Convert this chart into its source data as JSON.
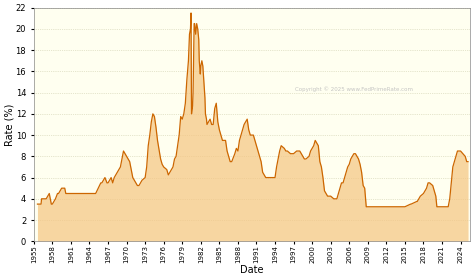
{
  "xlabel": "Date",
  "ylabel": "Rate (%)",
  "copyright": "Copyright © 2025 www.FedPrimeRate.com",
  "line_color": "#CC6600",
  "fill_color": "#F5C580",
  "bg_outer": "#ffffff",
  "bg_inner": "#FFFFF0",
  "grid_color": "#CCCCAA",
  "title_color": "#000000",
  "subtitle_color": "#0000CC",
  "ylim": [
    0,
    22
  ],
  "yticks": [
    0,
    2,
    4,
    6,
    8,
    10,
    12,
    14,
    16,
    18,
    20,
    22
  ],
  "xtick_years": [
    1955,
    1958,
    1961,
    1964,
    1967,
    1970,
    1973,
    1976,
    1979,
    1982,
    1985,
    1988,
    1991,
    1994,
    1997,
    2000,
    2003,
    2006,
    2009,
    2012,
    2015,
    2018,
    2021,
    2024
  ],
  "data": [
    [
      1955.59,
      3.5
    ],
    [
      1956.17,
      3.5
    ],
    [
      1956.25,
      4.0
    ],
    [
      1957.0,
      4.0
    ],
    [
      1957.5,
      4.5
    ],
    [
      1957.83,
      3.5
    ],
    [
      1958.0,
      3.5
    ],
    [
      1958.5,
      4.0
    ],
    [
      1958.83,
      4.5
    ],
    [
      1959.0,
      4.5
    ],
    [
      1959.5,
      5.0
    ],
    [
      1960.0,
      5.0
    ],
    [
      1960.17,
      4.5
    ],
    [
      1961.0,
      4.5
    ],
    [
      1962.0,
      4.5
    ],
    [
      1963.0,
      4.5
    ],
    [
      1964.0,
      4.5
    ],
    [
      1965.0,
      4.5
    ],
    [
      1965.83,
      5.5
    ],
    [
      1966.0,
      5.5
    ],
    [
      1966.5,
      6.0
    ],
    [
      1966.83,
      5.5
    ],
    [
      1967.0,
      5.5
    ],
    [
      1967.5,
      6.0
    ],
    [
      1967.75,
      5.5
    ],
    [
      1968.0,
      6.0
    ],
    [
      1968.5,
      6.5
    ],
    [
      1968.75,
      6.75
    ],
    [
      1969.0,
      7.0
    ],
    [
      1969.5,
      8.5
    ],
    [
      1970.0,
      8.0
    ],
    [
      1970.5,
      7.5
    ],
    [
      1970.75,
      6.75
    ],
    [
      1971.0,
      6.0
    ],
    [
      1971.5,
      5.5
    ],
    [
      1971.75,
      5.25
    ],
    [
      1972.0,
      5.25
    ],
    [
      1972.5,
      5.75
    ],
    [
      1973.0,
      6.0
    ],
    [
      1973.25,
      7.0
    ],
    [
      1973.5,
      9.0
    ],
    [
      1973.75,
      10.0
    ],
    [
      1974.0,
      11.25
    ],
    [
      1974.25,
      12.0
    ],
    [
      1974.5,
      11.75
    ],
    [
      1974.75,
      10.75
    ],
    [
      1975.0,
      9.5
    ],
    [
      1975.5,
      7.75
    ],
    [
      1975.75,
      7.25
    ],
    [
      1976.0,
      7.0
    ],
    [
      1976.5,
      6.75
    ],
    [
      1976.75,
      6.25
    ],
    [
      1977.0,
      6.5
    ],
    [
      1977.5,
      7.0
    ],
    [
      1977.75,
      7.75
    ],
    [
      1978.0,
      8.0
    ],
    [
      1978.25,
      9.0
    ],
    [
      1978.5,
      10.0
    ],
    [
      1978.75,
      11.75
    ],
    [
      1979.0,
      11.5
    ],
    [
      1979.25,
      12.0
    ],
    [
      1979.5,
      13.0
    ],
    [
      1979.75,
      15.25
    ],
    [
      1980.0,
      17.0
    ],
    [
      1980.17,
      19.5
    ],
    [
      1980.33,
      20.0
    ],
    [
      1980.42,
      21.5
    ],
    [
      1980.5,
      12.0
    ],
    [
      1980.67,
      12.75
    ],
    [
      1980.75,
      14.0
    ],
    [
      1980.92,
      20.5
    ],
    [
      1981.0,
      20.5
    ],
    [
      1981.17,
      19.5
    ],
    [
      1981.33,
      20.5
    ],
    [
      1981.5,
      20.0
    ],
    [
      1981.67,
      19.0
    ],
    [
      1981.75,
      17.0
    ],
    [
      1981.92,
      15.75
    ],
    [
      1982.0,
      16.5
    ],
    [
      1982.17,
      17.0
    ],
    [
      1982.33,
      16.5
    ],
    [
      1982.5,
      15.0
    ],
    [
      1982.67,
      13.5
    ],
    [
      1982.75,
      12.0
    ],
    [
      1982.92,
      11.5
    ],
    [
      1983.0,
      11.0
    ],
    [
      1983.5,
      11.5
    ],
    [
      1983.75,
      11.0
    ],
    [
      1984.0,
      11.0
    ],
    [
      1984.25,
      12.5
    ],
    [
      1984.5,
      13.0
    ],
    [
      1984.75,
      11.25
    ],
    [
      1985.0,
      10.5
    ],
    [
      1985.25,
      10.0
    ],
    [
      1985.5,
      9.5
    ],
    [
      1986.0,
      9.5
    ],
    [
      1986.25,
      8.5
    ],
    [
      1986.5,
      8.0
    ],
    [
      1986.75,
      7.5
    ],
    [
      1987.0,
      7.5
    ],
    [
      1987.5,
      8.25
    ],
    [
      1987.75,
      8.75
    ],
    [
      1988.0,
      8.5
    ],
    [
      1988.25,
      9.5
    ],
    [
      1988.5,
      10.0
    ],
    [
      1988.75,
      10.5
    ],
    [
      1989.0,
      11.0
    ],
    [
      1989.5,
      11.5
    ],
    [
      1989.75,
      10.5
    ],
    [
      1990.0,
      10.0
    ],
    [
      1990.5,
      10.0
    ],
    [
      1990.75,
      9.5
    ],
    [
      1991.0,
      9.0
    ],
    [
      1991.25,
      8.5
    ],
    [
      1991.5,
      8.0
    ],
    [
      1991.75,
      7.5
    ],
    [
      1992.0,
      6.5
    ],
    [
      1992.5,
      6.0
    ],
    [
      1993.0,
      6.0
    ],
    [
      1994.0,
      6.0
    ],
    [
      1994.25,
      7.0
    ],
    [
      1994.5,
      7.75
    ],
    [
      1994.75,
      8.5
    ],
    [
      1995.0,
      9.0
    ],
    [
      1995.5,
      8.75
    ],
    [
      1995.75,
      8.5
    ],
    [
      1996.0,
      8.5
    ],
    [
      1996.5,
      8.25
    ],
    [
      1997.0,
      8.25
    ],
    [
      1997.5,
      8.5
    ],
    [
      1998.0,
      8.5
    ],
    [
      1998.5,
      8.0
    ],
    [
      1998.75,
      7.75
    ],
    [
      1999.0,
      7.75
    ],
    [
      1999.5,
      8.0
    ],
    [
      1999.75,
      8.5
    ],
    [
      2000.0,
      8.75
    ],
    [
      2000.25,
      9.0
    ],
    [
      2000.5,
      9.5
    ],
    [
      2001.0,
      9.0
    ],
    [
      2001.25,
      7.5
    ],
    [
      2001.5,
      7.0
    ],
    [
      2001.75,
      6.0
    ],
    [
      2002.0,
      4.75
    ],
    [
      2002.5,
      4.25
    ],
    [
      2003.0,
      4.25
    ],
    [
      2003.5,
      4.0
    ],
    [
      2004.0,
      4.0
    ],
    [
      2004.25,
      4.5
    ],
    [
      2004.5,
      5.0
    ],
    [
      2004.75,
      5.5
    ],
    [
      2005.0,
      5.5
    ],
    [
      2005.25,
      6.0
    ],
    [
      2005.5,
      6.5
    ],
    [
      2005.75,
      7.0
    ],
    [
      2006.0,
      7.25
    ],
    [
      2006.25,
      7.75
    ],
    [
      2006.5,
      8.0
    ],
    [
      2006.75,
      8.25
    ],
    [
      2007.0,
      8.25
    ],
    [
      2007.25,
      8.0
    ],
    [
      2007.5,
      7.75
    ],
    [
      2007.75,
      7.25
    ],
    [
      2008.0,
      6.5
    ],
    [
      2008.25,
      5.25
    ],
    [
      2008.5,
      5.0
    ],
    [
      2008.75,
      3.25
    ],
    [
      2009.0,
      3.25
    ],
    [
      2010.0,
      3.25
    ],
    [
      2011.0,
      3.25
    ],
    [
      2012.0,
      3.25
    ],
    [
      2013.0,
      3.25
    ],
    [
      2014.0,
      3.25
    ],
    [
      2015.0,
      3.25
    ],
    [
      2015.92,
      3.5
    ],
    [
      2016.0,
      3.5
    ],
    [
      2016.92,
      3.75
    ],
    [
      2017.0,
      3.75
    ],
    [
      2017.25,
      4.0
    ],
    [
      2017.5,
      4.25
    ],
    [
      2018.0,
      4.5
    ],
    [
      2018.25,
      4.75
    ],
    [
      2018.5,
      5.0
    ],
    [
      2018.75,
      5.5
    ],
    [
      2019.0,
      5.5
    ],
    [
      2019.5,
      5.25
    ],
    [
      2019.75,
      4.75
    ],
    [
      2020.0,
      4.25
    ],
    [
      2020.17,
      3.25
    ],
    [
      2021.0,
      3.25
    ],
    [
      2022.0,
      3.25
    ],
    [
      2022.25,
      4.0
    ],
    [
      2022.5,
      5.5
    ],
    [
      2022.75,
      7.0
    ],
    [
      2023.0,
      7.5
    ],
    [
      2023.25,
      8.0
    ],
    [
      2023.5,
      8.5
    ],
    [
      2024.0,
      8.5
    ],
    [
      2024.75,
      8.0
    ],
    [
      2025.0,
      7.5
    ],
    [
      2025.21,
      7.5
    ]
  ]
}
